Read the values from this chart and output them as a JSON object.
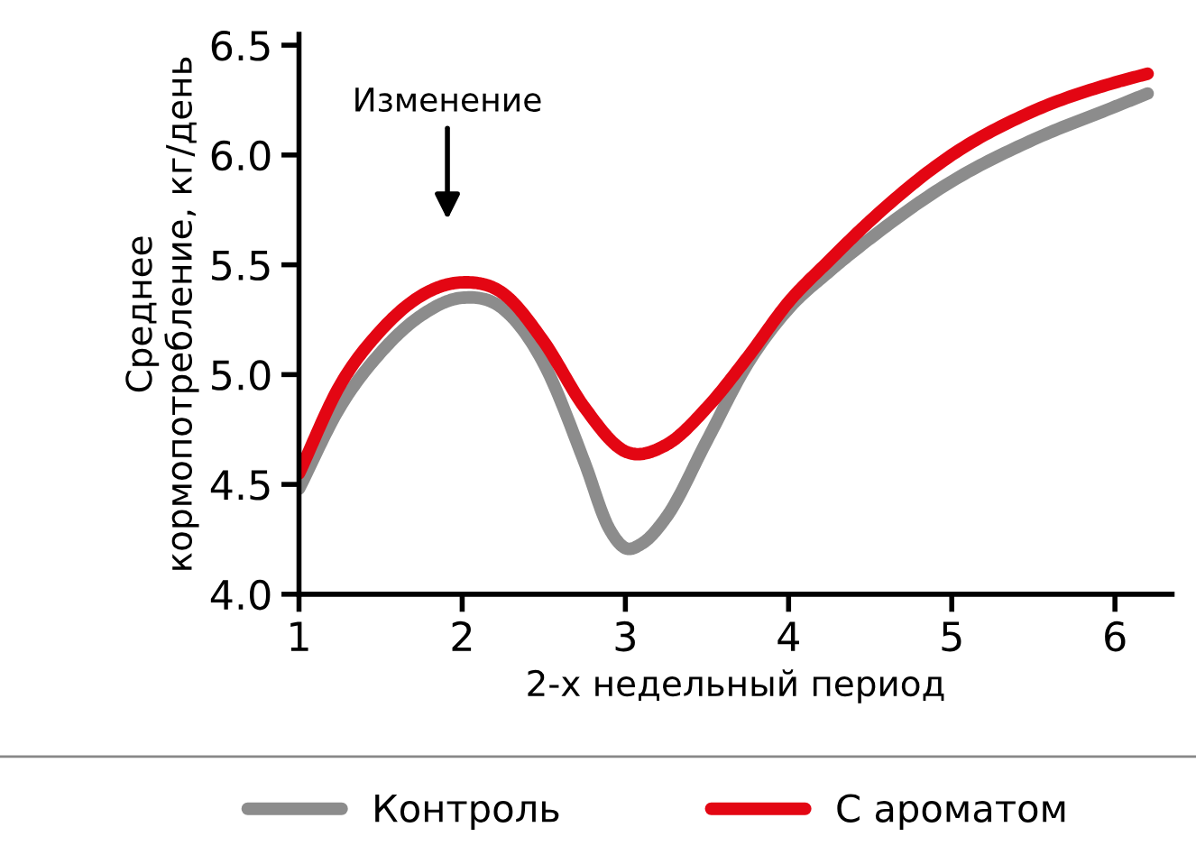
{
  "chart_data": {
    "type": "line",
    "xlabel": "2-х недельный период",
    "ylabel": "Среднее\nкормопотребление, кг/день",
    "xlim": [
      1,
      6.35
    ],
    "xticks": [
      1,
      2,
      3,
      4,
      5,
      6
    ],
    "ylim": [
      4.0,
      6.55
    ],
    "yticks": [
      {
        "value": 4.0,
        "label": "4.0"
      },
      4.5,
      {
        "value": 5.0,
        "label": "5.0"
      },
      5.5,
      {
        "value": 6.0,
        "label": "6.0"
      },
      6.5
    ],
    "grid": false,
    "legend": "bottom",
    "marker": "none",
    "line_style": "solid",
    "annotations": [
      "Изменение"
    ],
    "series": [
      {
        "name": "Контроль",
        "color": "#8c8c8c",
        "x": [
          1,
          1.25,
          1.5,
          1.75,
          2,
          2.25,
          2.5,
          2.75,
          2.9,
          3,
          3.1,
          3.25,
          3.5,
          3.75,
          4,
          4.25,
          4.5,
          5,
          5.5,
          6,
          6.2
        ],
        "values": [
          4.48,
          4.85,
          5.1,
          5.27,
          5.35,
          5.3,
          5.05,
          4.6,
          4.3,
          4.21,
          4.23,
          4.35,
          4.7,
          5.05,
          5.3,
          5.47,
          5.62,
          5.88,
          6.07,
          6.22,
          6.28
        ]
      },
      {
        "name": "С ароматом",
        "color": "#e30613",
        "x": [
          1,
          1.25,
          1.5,
          1.75,
          2,
          2.25,
          2.5,
          2.75,
          3,
          3.25,
          3.5,
          3.75,
          4,
          4.25,
          4.5,
          5,
          5.5,
          6,
          6.2
        ],
        "values": [
          4.55,
          4.95,
          5.2,
          5.36,
          5.42,
          5.37,
          5.15,
          4.85,
          4.65,
          4.68,
          4.85,
          5.08,
          5.33,
          5.52,
          5.7,
          6.0,
          6.2,
          6.33,
          6.37
        ]
      }
    ]
  }
}
